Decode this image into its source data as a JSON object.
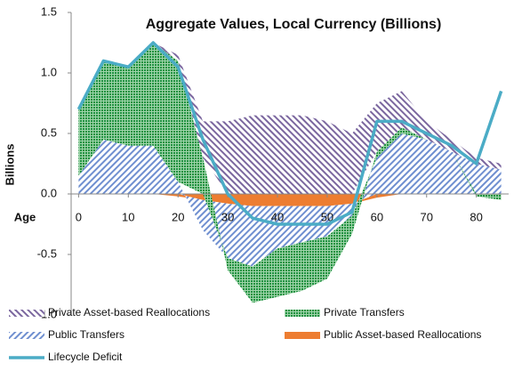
{
  "chart_data": {
    "type": "area",
    "title": "Aggregate Values, Local Currency (Billions)",
    "y_label": "Billions",
    "x_label": "Age",
    "x": [
      0,
      5,
      10,
      15,
      20,
      25,
      30,
      35,
      40,
      45,
      50,
      55,
      60,
      65,
      70,
      75,
      80,
      85
    ],
    "xlim": [
      -1.5,
      86.5
    ],
    "xticks": [
      0,
      10,
      20,
      30,
      40,
      50,
      60,
      70,
      80
    ],
    "ylim": [
      -1.0,
      1.5
    ],
    "yticks": [
      {
        "value": -1,
        "label": "-1.0"
      },
      {
        "value": -0.5,
        "label": "-0.5"
      },
      {
        "value": 0,
        "label": "0.0"
      },
      {
        "value": 0.5,
        "label": "0.5"
      },
      {
        "value": 1,
        "label": "1.0"
      },
      {
        "value": 1.5,
        "label": "1.5"
      }
    ],
    "series": [
      {
        "name": "Private Asset-based Reallocations",
        "style": "area",
        "color": "#7b679f",
        "values": [
          0,
          0,
          0,
          0,
          0.05,
          0.3,
          0.6,
          0.65,
          0.65,
          0.65,
          0.6,
          0.5,
          0.4,
          0.3,
          0.15,
          0.1,
          0.05,
          0.05
        ]
      },
      {
        "name": "Private Transfers",
        "style": "area",
        "color": "#1e9140",
        "values": [
          0.55,
          0.65,
          0.65,
          0.85,
          1.0,
          0.3,
          -0.1,
          -0.3,
          -0.4,
          -0.4,
          -0.35,
          -0.15,
          0.05,
          0.05,
          0.0,
          0.0,
          -0.02,
          -0.05
        ]
      },
      {
        "name": "Public Transfers",
        "style": "area",
        "color": "#6f8fd0",
        "values": [
          0.15,
          0.45,
          0.4,
          0.4,
          0.1,
          -0.25,
          -0.45,
          -0.5,
          -0.35,
          -0.3,
          -0.25,
          -0.1,
          0.3,
          0.5,
          0.45,
          0.35,
          0.25,
          0.2
        ]
      },
      {
        "name": "Public Asset-based Reallocations",
        "style": "area",
        "color": "#ed7d31",
        "values": [
          0,
          0,
          0,
          0,
          -0.02,
          -0.05,
          -0.08,
          -0.1,
          -0.1,
          -0.1,
          -0.1,
          -0.08,
          -0.03,
          0,
          0,
          0,
          0,
          0
        ]
      },
      {
        "name": "Lifecycle Deficit",
        "style": "line",
        "color": "#4bacc6",
        "values": [
          0.7,
          1.1,
          1.05,
          1.25,
          1.05,
          0.45,
          0.0,
          -0.2,
          -0.25,
          -0.25,
          -0.25,
          -0.15,
          0.6,
          0.6,
          0.5,
          0.4,
          0.25,
          0.85
        ]
      }
    ]
  }
}
